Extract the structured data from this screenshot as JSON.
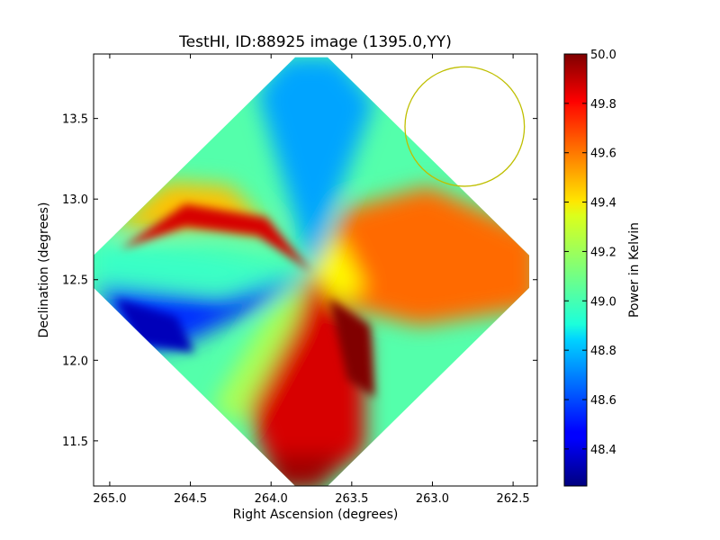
{
  "chart_data": {
    "type": "heatmap",
    "title": "TestHI, ID:88925 image (1395.0,YY)",
    "xlabel": "Right Ascension (degrees)",
    "ylabel": "Declination (degrees)",
    "xlim": [
      265.1,
      262.35
    ],
    "ylim": [
      11.22,
      13.9
    ],
    "x_ticks": [
      "265.0",
      "264.5",
      "264.0",
      "263.5",
      "263.0",
      "262.5"
    ],
    "x_tick_values": [
      265.0,
      264.5,
      264.0,
      263.5,
      263.0,
      262.5
    ],
    "y_ticks": [
      "11.5",
      "12.0",
      "12.5",
      "13.0",
      "13.5"
    ],
    "y_tick_values": [
      11.5,
      12.0,
      12.5,
      13.0,
      13.5
    ],
    "image_extent": {
      "center": [
        263.75,
        12.55
      ],
      "ra_half_width": 1.35,
      "dec_half_height": 1.33,
      "shape": "diamond"
    },
    "circle": {
      "center": [
        262.8,
        13.45
      ],
      "radius_deg": 0.37,
      "color": "#bfbf00"
    },
    "colorbar": {
      "label": "Power in Kelvin",
      "min": 48.25,
      "max": 50.0,
      "colormap": "jet",
      "ticks": [
        "48.4",
        "48.6",
        "48.8",
        "49.0",
        "49.2",
        "49.4",
        "49.6",
        "49.8",
        "50.0"
      ],
      "tick_values": [
        48.4,
        48.6,
        48.8,
        49.0,
        49.2,
        49.4,
        49.6,
        49.8,
        50.0
      ]
    },
    "regions": [
      {
        "name": "top",
        "center": [
          263.75,
          13.45
        ],
        "value": 48.75
      },
      {
        "name": "left",
        "center": [
          264.8,
          12.5
        ],
        "value": 49.0
      },
      {
        "name": "lower-left",
        "center": [
          264.75,
          12.2
        ],
        "value": 48.35
      },
      {
        "name": "upper-left-band",
        "center": [
          264.2,
          12.8
        ],
        "value": 49.85
      },
      {
        "name": "right",
        "center": [
          263.0,
          12.6
        ],
        "value": 49.6
      },
      {
        "name": "bottom",
        "center": [
          263.75,
          11.7
        ],
        "value": 49.85
      },
      {
        "name": "bottom-right-dark",
        "center": [
          263.3,
          12.1
        ],
        "value": 50.0
      },
      {
        "name": "lower-left-diagonal",
        "center": [
          264.1,
          11.85
        ],
        "value": 49.2
      }
    ]
  }
}
